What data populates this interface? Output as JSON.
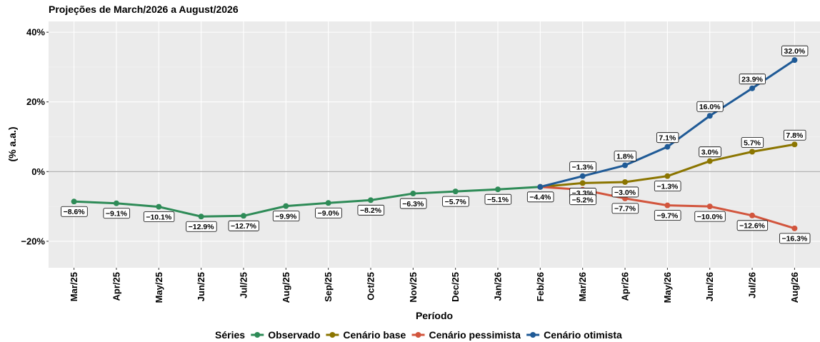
{
  "chart_data": {
    "type": "line",
    "title": "Projeções de March/2026 a August/2026",
    "x_label": "Período",
    "y_label": "(% a.a.)",
    "legend_title": "Séries",
    "legend_position": "bottom",
    "grid": true,
    "categories": [
      "Mar/25",
      "Apr/25",
      "May/25",
      "Jun/25",
      "Jul/25",
      "Aug/25",
      "Sep/25",
      "Oct/25",
      "Nov/25",
      "Dec/25",
      "Jan/26",
      "Feb/26",
      "Mar/26",
      "Apr/26",
      "May/26",
      "Jun/26",
      "Jul/26",
      "Aug/26"
    ],
    "ylim": [
      -27.6,
      43.1
    ],
    "yticks": [
      {
        "value": -20,
        "label": "−20%"
      },
      {
        "value": 0,
        "label": "0%"
      },
      {
        "value": 20,
        "label": "20%"
      },
      {
        "value": 40,
        "label": "40%"
      }
    ],
    "series": [
      {
        "name": "Observado",
        "color": "#2e8b57",
        "values": [
          -8.6,
          -9.1,
          -10.1,
          -12.9,
          -12.7,
          -9.9,
          -9.0,
          -8.2,
          -6.3,
          -5.7,
          -5.1,
          -4.4,
          null,
          null,
          null,
          null,
          null,
          null
        ],
        "value_labels": [
          "−8.6%",
          "−9.1%",
          "−10.1%",
          "−12.9%",
          "−12.7%",
          "−9.9%",
          "−9.0%",
          "−8.2%",
          "−6.3%",
          "−5.7%",
          "−5.1%",
          "−4.4%",
          null,
          null,
          null,
          null,
          null,
          null
        ]
      },
      {
        "name": "Cenário base",
        "color": "#8b7500",
        "values": [
          null,
          null,
          null,
          null,
          null,
          null,
          null,
          null,
          null,
          null,
          null,
          -4.4,
          -3.3,
          -3.0,
          -1.3,
          3.0,
          5.7,
          7.8
        ],
        "value_labels": [
          null,
          null,
          null,
          null,
          null,
          null,
          null,
          null,
          null,
          null,
          null,
          null,
          "−3.3%",
          "−3.0%",
          "−1.3%",
          "3.0%",
          "5.7%",
          "7.8%"
        ]
      },
      {
        "name": "Cenário pessimista",
        "color": "#d2553d",
        "values": [
          null,
          null,
          null,
          null,
          null,
          null,
          null,
          null,
          null,
          null,
          null,
          -4.4,
          -5.2,
          -7.7,
          -9.7,
          -10.0,
          -12.6,
          -16.3
        ],
        "value_labels": [
          null,
          null,
          null,
          null,
          null,
          null,
          null,
          null,
          null,
          null,
          null,
          null,
          "−5.2%",
          "−7.7%",
          "−9.7%",
          "−10.0%",
          "−12.6%",
          "−16.3%"
        ]
      },
      {
        "name": "Cenário otimista",
        "color": "#1f5a96",
        "values": [
          null,
          null,
          null,
          null,
          null,
          null,
          null,
          null,
          null,
          null,
          null,
          -4.4,
          -1.3,
          1.8,
          7.1,
          16.0,
          23.9,
          32.0
        ],
        "value_labels": [
          null,
          null,
          null,
          null,
          null,
          null,
          null,
          null,
          null,
          null,
          null,
          null,
          "−1.3%",
          "1.8%",
          "7.1%",
          "16.0%",
          "23.9%",
          "32.0%"
        ]
      }
    ]
  }
}
